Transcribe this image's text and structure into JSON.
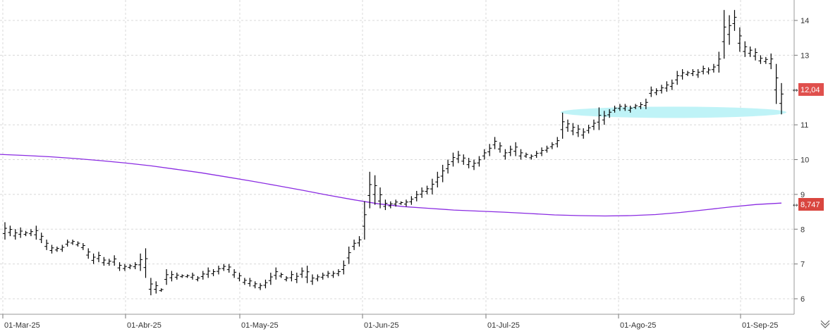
{
  "chart_data": {
    "type": "ohlc",
    "y_ticks": [
      "14",
      "13",
      "12",
      "11",
      "10",
      "9",
      "8",
      "7",
      "6"
    ],
    "ylim": [
      5.6,
      14.6
    ],
    "x_labels": [
      "01-Mar-25",
      "01-Abr-25",
      "01-May-25",
      "01-Jun-25",
      "01-Jul-25",
      "01-Ago-25",
      "01-Sep-25"
    ],
    "last_price_label": "12,04",
    "moving_average_label": "8,747",
    "grid": true,
    "colors": {
      "bars": "#000000",
      "moving_average": "#8a2be2",
      "price_tag": "#e0504d",
      "ma_tag": "#d9463f",
      "support_zone": "#bff3f7",
      "grid": "#d8d8d8"
    },
    "bars": [
      [
        8.2,
        7.7
      ],
      [
        8.1,
        7.8
      ],
      [
        8.0,
        7.7
      ],
      [
        8.05,
        7.75
      ],
      [
        7.95,
        7.8
      ],
      [
        8.0,
        7.8
      ],
      [
        8.1,
        7.7
      ],
      [
        7.9,
        7.6
      ],
      [
        7.7,
        7.4
      ],
      [
        7.55,
        7.3
      ],
      [
        7.5,
        7.35
      ],
      [
        7.55,
        7.35
      ],
      [
        7.7,
        7.5
      ],
      [
        7.7,
        7.55
      ],
      [
        7.65,
        7.5
      ],
      [
        7.6,
        7.4
      ],
      [
        7.45,
        7.15
      ],
      [
        7.3,
        7.0
      ],
      [
        7.35,
        7.05
      ],
      [
        7.2,
        6.95
      ],
      [
        7.15,
        6.95
      ],
      [
        7.25,
        6.95
      ],
      [
        7.05,
        6.8
      ],
      [
        7.0,
        6.8
      ],
      [
        7.0,
        6.85
      ],
      [
        7.05,
        6.85
      ],
      [
        7.3,
        6.8
      ],
      [
        7.45,
        6.6
      ],
      [
        6.6,
        6.1
      ],
      [
        6.5,
        6.15
      ],
      [
        6.3,
        6.2
      ],
      [
        6.85,
        6.4
      ],
      [
        6.8,
        6.5
      ],
      [
        6.75,
        6.55
      ],
      [
        6.7,
        6.6
      ],
      [
        6.7,
        6.6
      ],
      [
        6.75,
        6.55
      ],
      [
        6.65,
        6.5
      ],
      [
        6.8,
        6.55
      ],
      [
        6.9,
        6.6
      ],
      [
        6.85,
        6.65
      ],
      [
        6.95,
        6.7
      ],
      [
        7.0,
        6.8
      ],
      [
        7.0,
        6.75
      ],
      [
        6.85,
        6.6
      ],
      [
        6.75,
        6.5
      ],
      [
        6.6,
        6.4
      ],
      [
        6.6,
        6.35
      ],
      [
        6.5,
        6.3
      ],
      [
        6.45,
        6.25
      ],
      [
        6.55,
        6.3
      ],
      [
        6.75,
        6.4
      ],
      [
        6.9,
        6.55
      ],
      [
        6.75,
        6.6
      ],
      [
        6.65,
        6.5
      ],
      [
        6.8,
        6.5
      ],
      [
        6.75,
        6.45
      ],
      [
        6.9,
        6.6
      ],
      [
        6.95,
        6.45
      ],
      [
        6.7,
        6.4
      ],
      [
        6.7,
        6.5
      ],
      [
        6.75,
        6.55
      ],
      [
        6.8,
        6.6
      ],
      [
        6.8,
        6.6
      ],
      [
        6.85,
        6.65
      ],
      [
        7.1,
        6.7
      ],
      [
        7.5,
        7.0
      ],
      [
        7.7,
        7.4
      ],
      [
        7.8,
        7.5
      ],
      [
        8.8,
        7.7
      ],
      [
        9.65,
        8.6
      ],
      [
        9.55,
        8.7
      ],
      [
        9.2,
        8.6
      ],
      [
        8.85,
        8.55
      ],
      [
        8.8,
        8.6
      ],
      [
        8.85,
        8.65
      ],
      [
        8.8,
        8.7
      ],
      [
        8.85,
        8.65
      ],
      [
        8.95,
        8.7
      ],
      [
        9.1,
        8.8
      ],
      [
        9.2,
        8.9
      ],
      [
        9.25,
        9.0
      ],
      [
        9.45,
        9.0
      ],
      [
        9.65,
        9.2
      ],
      [
        9.85,
        9.35
      ],
      [
        10.0,
        9.6
      ],
      [
        10.2,
        9.8
      ],
      [
        10.25,
        9.9
      ],
      [
        10.15,
        9.85
      ],
      [
        10.05,
        9.75
      ],
      [
        10.0,
        9.7
      ],
      [
        10.1,
        9.8
      ],
      [
        10.3,
        10.0
      ],
      [
        10.45,
        10.1
      ],
      [
        10.65,
        10.3
      ],
      [
        10.5,
        10.2
      ],
      [
        10.3,
        10.0
      ],
      [
        10.4,
        10.1
      ],
      [
        10.5,
        10.1
      ],
      [
        10.3,
        10.0
      ],
      [
        10.2,
        10.05
      ],
      [
        10.15,
        10.0
      ],
      [
        10.25,
        10.05
      ],
      [
        10.35,
        10.1
      ],
      [
        10.4,
        10.2
      ],
      [
        10.5,
        10.3
      ],
      [
        10.65,
        10.35
      ],
      [
        11.35,
        10.6
      ],
      [
        11.15,
        10.8
      ],
      [
        11.05,
        10.7
      ],
      [
        11.0,
        10.65
      ],
      [
        10.9,
        10.6
      ],
      [
        11.0,
        10.75
      ],
      [
        11.15,
        10.85
      ],
      [
        11.5,
        10.85
      ],
      [
        11.4,
        11.0
      ],
      [
        11.45,
        11.2
      ],
      [
        11.55,
        11.35
      ],
      [
        11.6,
        11.4
      ],
      [
        11.6,
        11.4
      ],
      [
        11.55,
        11.35
      ],
      [
        11.6,
        11.45
      ],
      [
        11.65,
        11.45
      ],
      [
        11.75,
        11.45
      ],
      [
        12.1,
        11.8
      ],
      [
        12.05,
        11.85
      ],
      [
        12.15,
        11.9
      ],
      [
        12.25,
        11.95
      ],
      [
        12.3,
        12.0
      ],
      [
        12.55,
        12.15
      ],
      [
        12.6,
        12.3
      ],
      [
        12.55,
        12.4
      ],
      [
        12.6,
        12.4
      ],
      [
        12.6,
        12.35
      ],
      [
        12.7,
        12.45
      ],
      [
        12.65,
        12.45
      ],
      [
        12.75,
        12.5
      ],
      [
        13.1,
        12.5
      ],
      [
        14.3,
        12.9
      ],
      [
        14.15,
        13.3
      ],
      [
        14.3,
        13.7
      ],
      [
        13.8,
        13.1
      ],
      [
        13.4,
        12.95
      ],
      [
        13.25,
        12.95
      ],
      [
        13.2,
        12.85
      ],
      [
        13.0,
        12.75
      ],
      [
        12.95,
        12.75
      ],
      [
        13.05,
        12.6
      ],
      [
        12.75,
        11.6
      ],
      [
        12.2,
        11.3
      ]
    ],
    "ma": [
      10.15,
      10.12,
      10.08,
      10.03,
      9.97,
      9.9,
      9.82,
      9.72,
      9.62,
      9.5,
      9.38,
      9.25,
      9.12,
      8.98,
      8.85,
      8.73,
      8.65,
      8.6,
      8.55,
      8.52,
      8.49,
      8.45,
      8.41,
      8.39,
      8.38,
      8.39,
      8.42,
      8.48,
      8.56,
      8.64,
      8.71,
      8.75
    ]
  }
}
